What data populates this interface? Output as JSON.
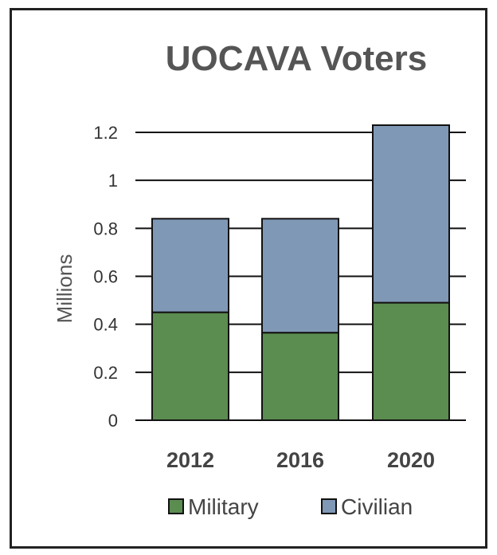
{
  "chart_data": {
    "type": "bar",
    "stacked": true,
    "title": "UOCAVA Voters",
    "xlabel": "",
    "ylabel": "Millions",
    "categories": [
      "2012",
      "2016",
      "2020"
    ],
    "ylim": [
      0,
      1.2
    ],
    "yticks": [
      "0",
      "0.2",
      "0.4",
      "0.6",
      "0.8",
      "1",
      "1.2"
    ],
    "grid": true,
    "legend_position": "bottom",
    "series": [
      {
        "name": "Military",
        "color": "#5b8c50",
        "values": [
          0.45,
          0.365,
          0.49
        ]
      },
      {
        "name": "Civilian",
        "color": "#7f98b5",
        "values": [
          0.39,
          0.475,
          0.74
        ]
      }
    ]
  }
}
